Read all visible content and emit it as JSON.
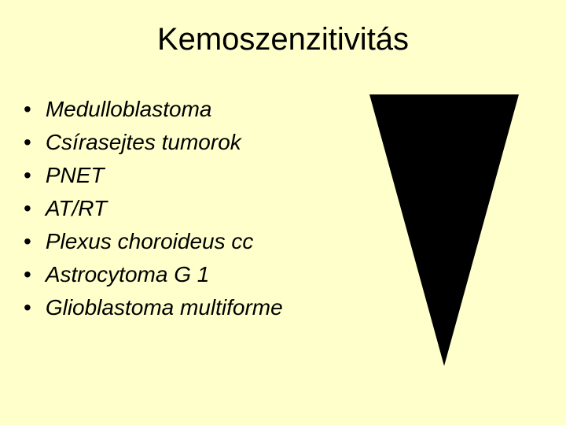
{
  "title": "Kemoszenzitivitás",
  "list_items": [
    "Medulloblastoma",
    "Csírasejtes tumorok",
    "PNET",
    "AT/RT",
    "Plexus choroideus cc",
    "Astrocytoma G 1",
    "Glioblastoma multiforme"
  ],
  "styling": {
    "background_color": "#ffffcc",
    "text_color": "#000000",
    "title_fontsize": 40,
    "item_fontsize": 28,
    "item_font_style": "italic",
    "triangle_color": "#000000",
    "triangle_width": 190,
    "triangle_height": 345,
    "triangle_direction": "down"
  }
}
